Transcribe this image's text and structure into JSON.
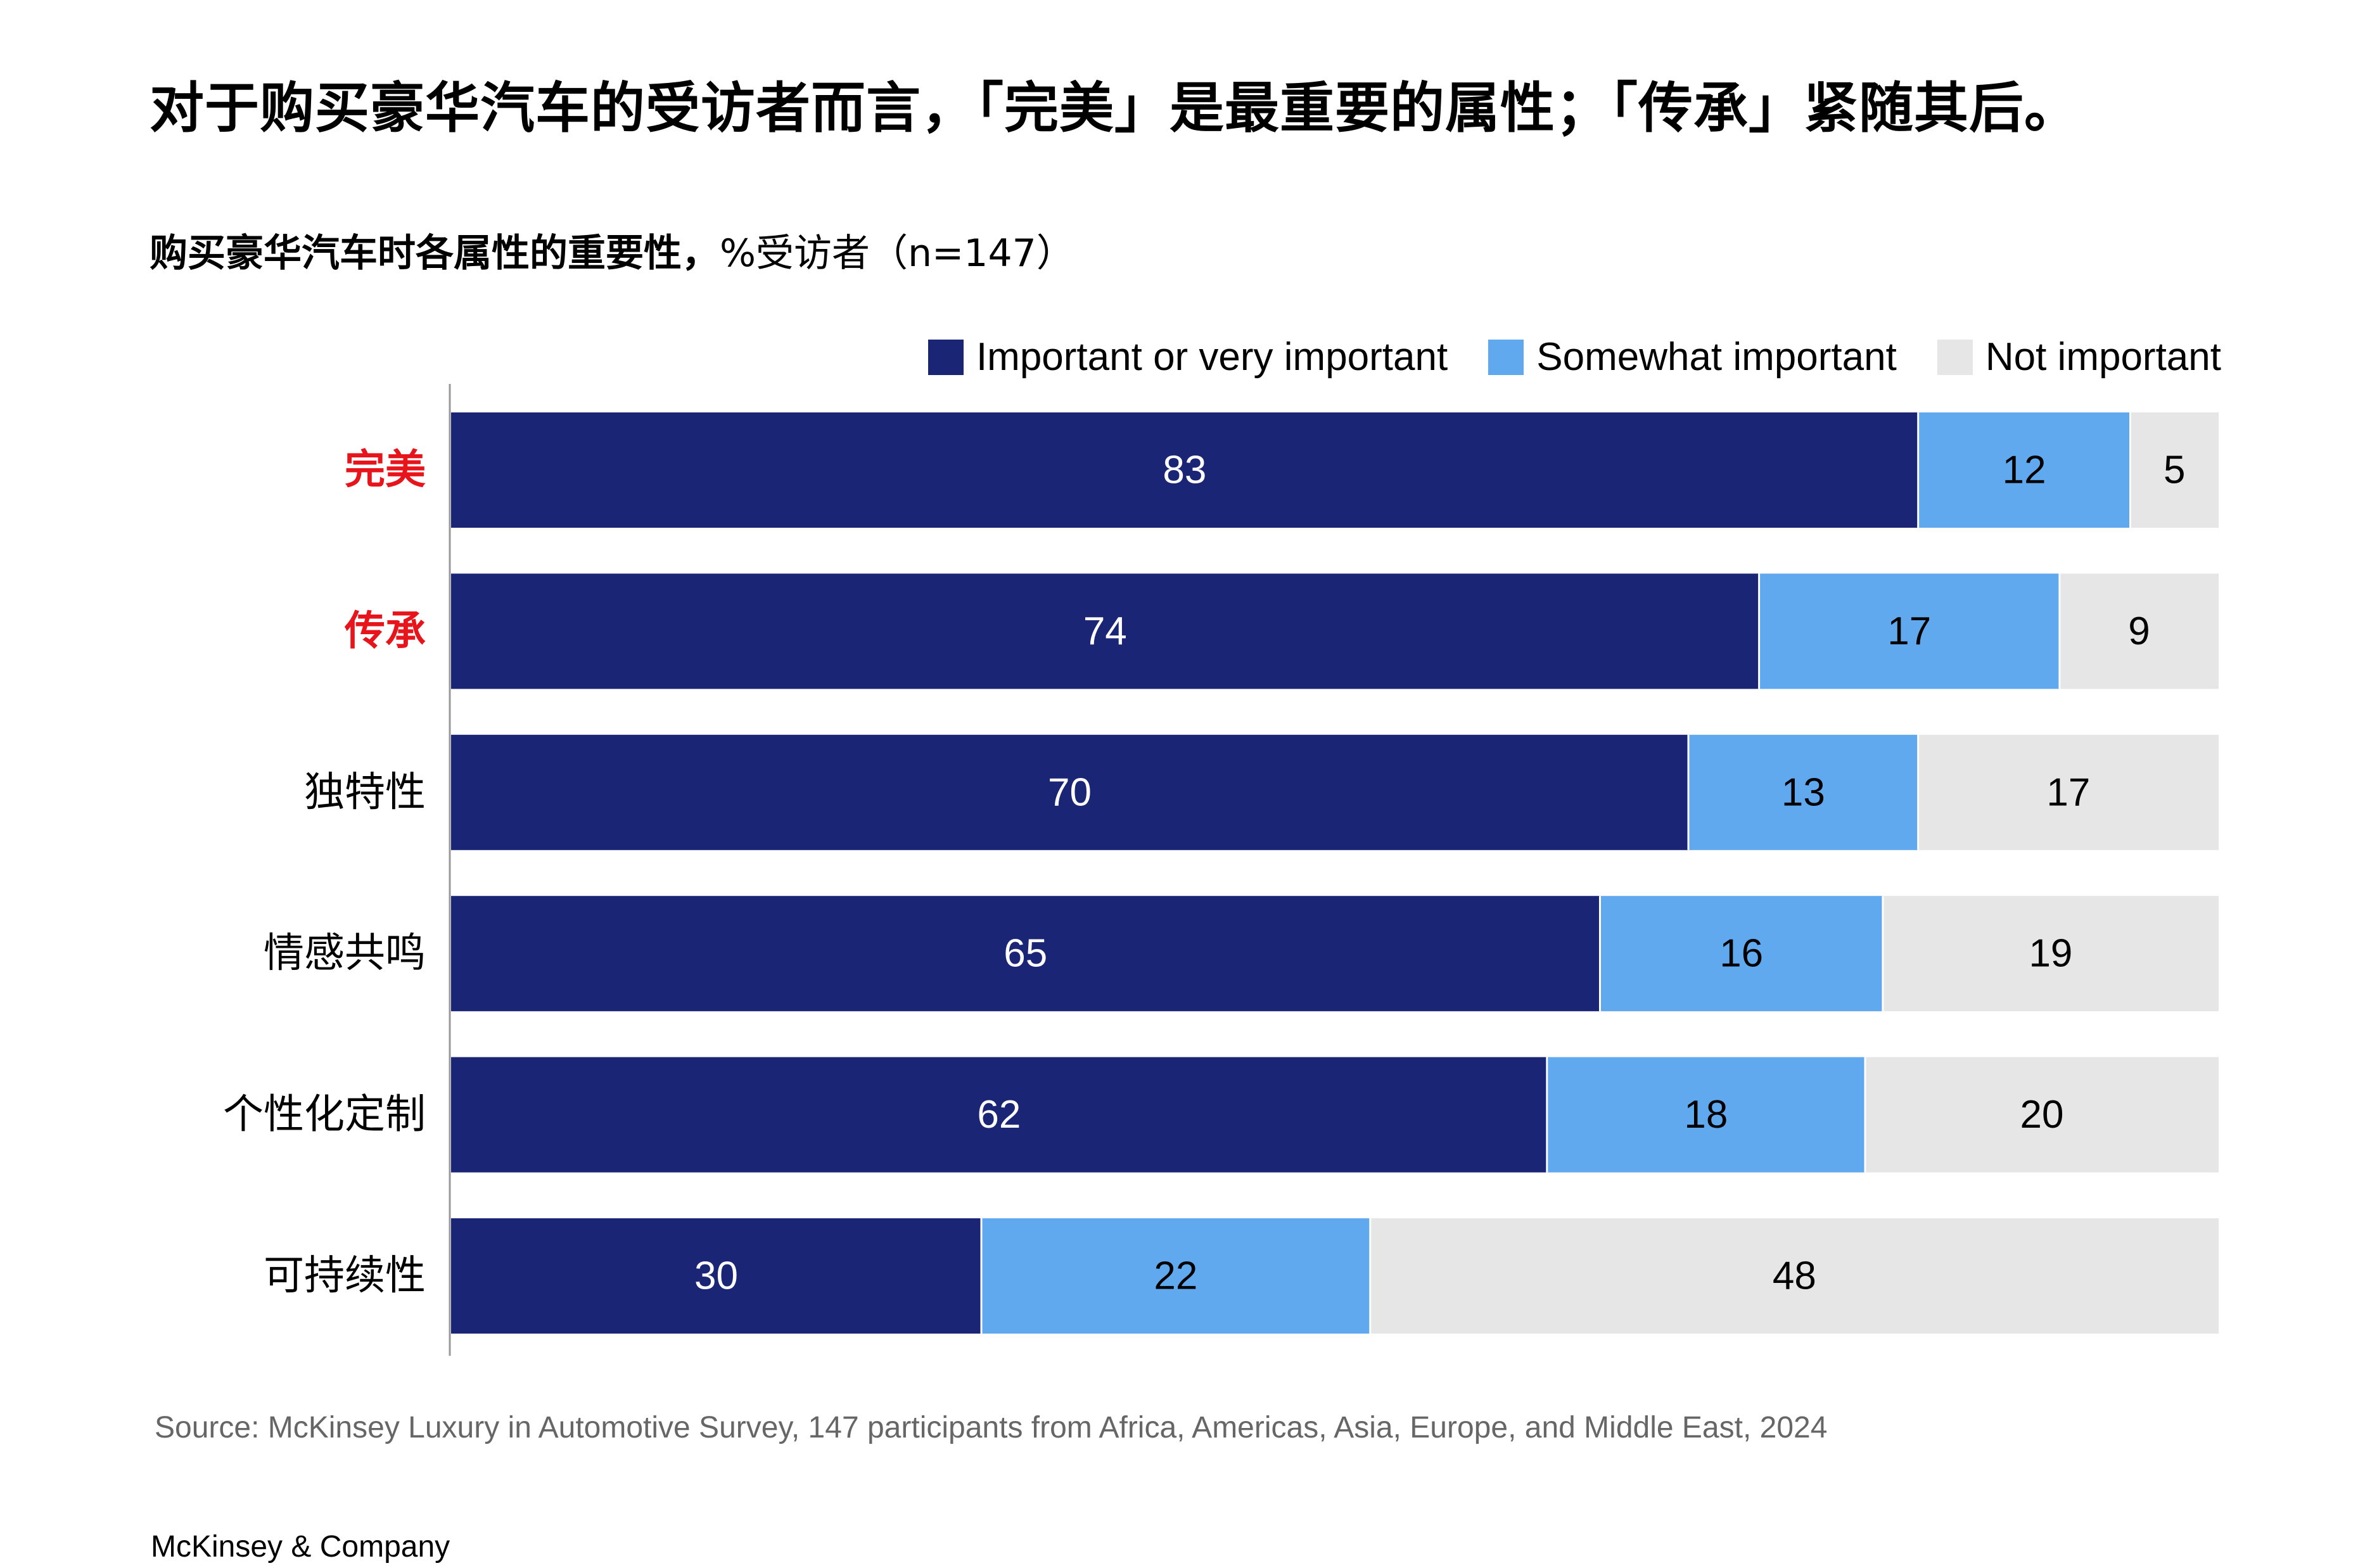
{
  "headline": "对于购买豪华汽车的受访者而言，「完美」是最重要的属性；「传承」紧随其后。",
  "subtitle": {
    "main": "购买豪华汽车时各属性的重要性，",
    "unit": "%受访者（n=147）"
  },
  "colors": {
    "important": "#1b2575",
    "somewhat": "#61a9ef",
    "not": "#e6e6e6",
    "highlight_label": "#e8141b",
    "axis": "#999999"
  },
  "chart_data": {
    "type": "bar",
    "orientation": "horizontal",
    "stacked": true,
    "categories": [
      "完美",
      "传承",
      "独特性",
      "情感共鸣",
      "个性化定制",
      "可持续性"
    ],
    "highlighted_categories": [
      "完美",
      "传承"
    ],
    "series": [
      {
        "name": "Important or very important",
        "values": [
          83,
          74,
          70,
          65,
          62,
          30
        ]
      },
      {
        "name": "Somewhat important",
        "values": [
          12,
          17,
          13,
          16,
          18,
          22
        ]
      },
      {
        "name": "Not important",
        "values": [
          5,
          9,
          17,
          19,
          20,
          48
        ]
      }
    ],
    "xlim": [
      0,
      100
    ],
    "legend_position": "top-right",
    "grid": false
  },
  "source": "Source: McKinsey Luxury in Automotive Survey, 147 participants from Africa, Americas, Asia, Europe, and Middle East, 2024",
  "brand": "McKinsey & Company"
}
